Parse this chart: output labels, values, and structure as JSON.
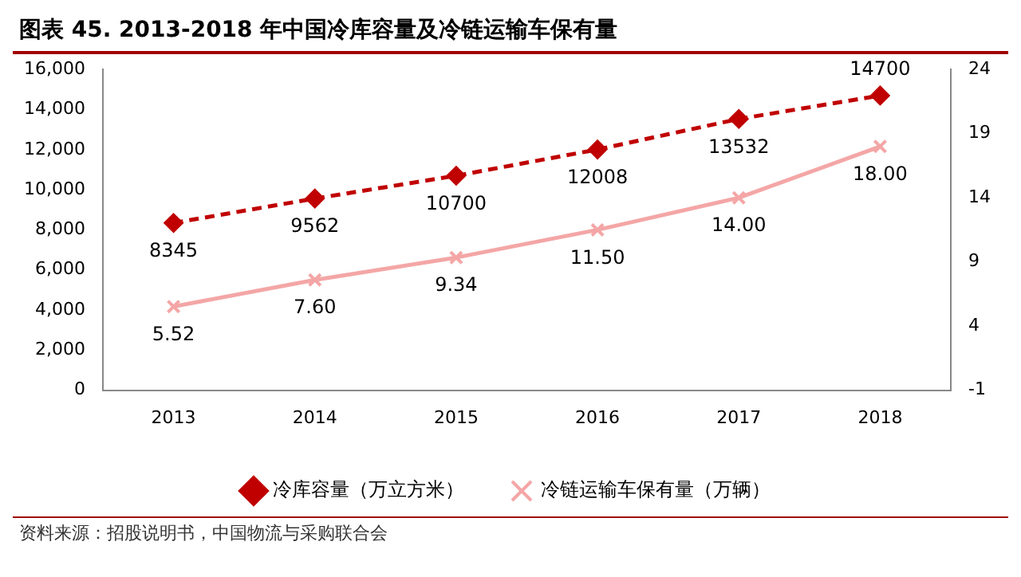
{
  "chart_data": {
    "type": "line",
    "title": "图表 45. 2013-2018 年中国冷库容量及冷链运输车保有量",
    "categories": [
      "2013",
      "2014",
      "2015",
      "2016",
      "2017",
      "2018"
    ],
    "series": [
      {
        "name": "冷库容量（万立方米）",
        "color": "#c00000",
        "values": [
          8345,
          9562,
          10700,
          12008,
          13532,
          14700
        ],
        "value_labels": [
          "8345",
          "9562",
          "10700",
          "12008",
          "13532",
          "14700"
        ],
        "marker": "diamond",
        "line_style": "dashed"
      },
      {
        "name": "冷链运输车保有量（万辆）",
        "color": "#f4a6a6",
        "values": [
          5.52,
          7.6,
          9.34,
          11.5,
          14.0,
          18.0
        ],
        "value_labels": [
          "5.52",
          "7.60",
          "9.34",
          "11.50",
          "14.00",
          "18.00"
        ],
        "marker": "cross",
        "line_style": "solid",
        "axis": "y2"
      }
    ],
    "ylim": [
      0,
      16000
    ],
    "yticks": [
      {
        "value": 0,
        "label": "0"
      },
      {
        "value": 2000,
        "label": "2,000"
      },
      {
        "value": 4000,
        "label": "4,000"
      },
      {
        "value": 6000,
        "label": "6,000"
      },
      {
        "value": 8000,
        "label": "8,000"
      },
      {
        "value": 10000,
        "label": "10,000"
      },
      {
        "value": 12000,
        "label": "12,000"
      },
      {
        "value": 14000,
        "label": "14,000"
      },
      {
        "value": 16000,
        "label": "16,000"
      }
    ],
    "y2lim": [
      -1,
      24
    ],
    "y2ticks": [
      -1,
      4,
      9,
      14,
      19,
      24
    ],
    "grid": false,
    "legend": "bottom",
    "annotations": [
      "资料来源：招股说明书，中国物流与采购联合会"
    ]
  }
}
